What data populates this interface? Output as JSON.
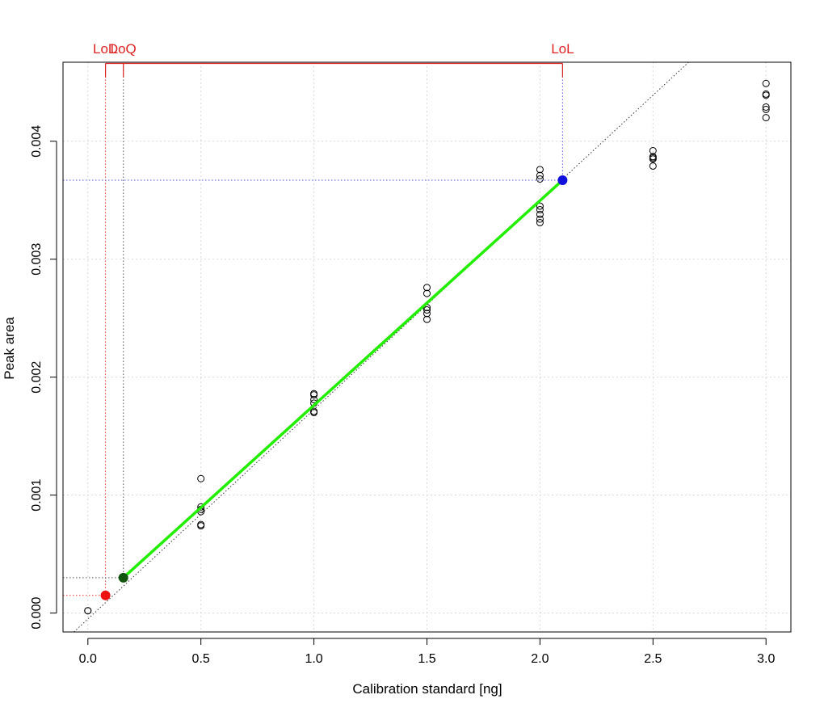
{
  "chart_data": {
    "type": "scatter",
    "xlabel": "Calibration standard [ng]",
    "ylabel": "Peak area",
    "xlim": [
      -0.11,
      3.11
    ],
    "ylim": [
      -0.00016,
      0.00467
    ],
    "xticks": [
      0,
      0.5,
      1,
      1.5,
      2,
      2.5,
      3
    ],
    "xtick_labels": [
      "0.0",
      "0.5",
      "1.0",
      "1.5",
      "2.0",
      "2.5",
      "3.0"
    ],
    "yticks": [
      0,
      0.001,
      0.002,
      0.003,
      0.004
    ],
    "ytick_labels": [
      "0.000",
      "0.001",
      "0.002",
      "0.003",
      "0.004"
    ],
    "grid": true,
    "points": [
      {
        "x": 0.0,
        "y": 2e-05
      },
      {
        "x": 0.0,
        "y": 2e-05
      },
      {
        "x": 0.5,
        "y": 0.00114
      },
      {
        "x": 0.5,
        "y": 0.0009
      },
      {
        "x": 0.5,
        "y": 0.00088
      },
      {
        "x": 0.5,
        "y": 0.00086
      },
      {
        "x": 0.5,
        "y": 0.00075
      },
      {
        "x": 0.5,
        "y": 0.00074
      },
      {
        "x": 1.0,
        "y": 0.00186
      },
      {
        "x": 1.0,
        "y": 0.00185
      },
      {
        "x": 1.0,
        "y": 0.00181
      },
      {
        "x": 1.0,
        "y": 0.00178
      },
      {
        "x": 1.0,
        "y": 0.00171
      },
      {
        "x": 1.0,
        "y": 0.0017
      },
      {
        "x": 1.5,
        "y": 0.00276
      },
      {
        "x": 1.5,
        "y": 0.00271
      },
      {
        "x": 1.5,
        "y": 0.00259
      },
      {
        "x": 1.5,
        "y": 0.00257
      },
      {
        "x": 1.5,
        "y": 0.00254
      },
      {
        "x": 1.5,
        "y": 0.00249
      },
      {
        "x": 2.0,
        "y": 0.00376
      },
      {
        "x": 2.0,
        "y": 0.00371
      },
      {
        "x": 2.0,
        "y": 0.00368
      },
      {
        "x": 2.0,
        "y": 0.00345
      },
      {
        "x": 2.0,
        "y": 0.00342
      },
      {
        "x": 2.0,
        "y": 0.00338
      },
      {
        "x": 2.0,
        "y": 0.00334
      },
      {
        "x": 2.0,
        "y": 0.00331
      },
      {
        "x": 2.5,
        "y": 0.00392
      },
      {
        "x": 2.5,
        "y": 0.00387
      },
      {
        "x": 2.5,
        "y": 0.00386
      },
      {
        "x": 2.5,
        "y": 0.00385
      },
      {
        "x": 2.5,
        "y": 0.00379
      },
      {
        "x": 3.0,
        "y": 0.00449
      },
      {
        "x": 3.0,
        "y": 0.0044
      },
      {
        "x": 3.0,
        "y": 0.00439
      },
      {
        "x": 3.0,
        "y": 0.00429
      },
      {
        "x": 3.0,
        "y": 0.00427
      },
      {
        "x": 3.0,
        "y": 0.0042
      }
    ],
    "reference_line": {
      "intercept": -5e-05,
      "slope": 0.001776,
      "style": "dotted",
      "color": "#333333"
    },
    "fit_line": {
      "x": [
        0.157,
        2.1
      ],
      "y": [
        0.0003,
        0.00367
      ],
      "color": "#22ee00"
    },
    "markers": [
      {
        "label": "LoD",
        "x": 0.078,
        "y": 0.00015,
        "color": "#ee1111",
        "guide_color": "#ee3333"
      },
      {
        "label": "LoQ",
        "x": 0.157,
        "y": 0.0003,
        "color": "#115511",
        "guide_color": "#555555"
      },
      {
        "label": "LoL",
        "x": 2.1,
        "y": 0.00367,
        "color": "#1111dd",
        "guide_color": "#5555ee"
      }
    ],
    "bracket_color": "#dd2222"
  }
}
